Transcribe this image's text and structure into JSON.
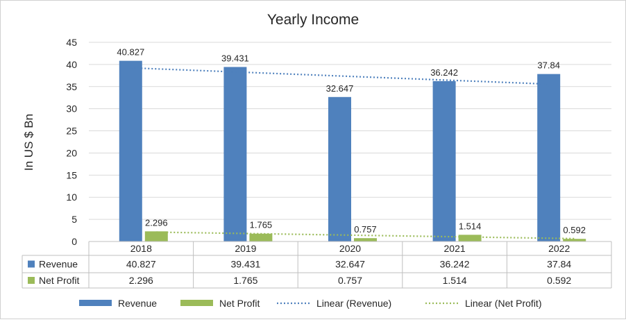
{
  "chart_data": {
    "type": "bar",
    "title": "Yearly Income",
    "ylabel": "In US $ Bn",
    "xlabel": "",
    "categories": [
      "2018",
      "2019",
      "2020",
      "2021",
      "2022"
    ],
    "ylim": [
      0,
      45
    ],
    "yticks": [
      "0",
      "5",
      "10",
      "15",
      "20",
      "25",
      "30",
      "35",
      "40",
      "45"
    ],
    "grid": true,
    "series": [
      {
        "name": "Revenue",
        "values": [
          40.827,
          39.431,
          32.647,
          36.242,
          37.84
        ],
        "labels": [
          "40.827",
          "39.431",
          "32.647",
          "36.242",
          "37.84"
        ],
        "color": "#4f81bd"
      },
      {
        "name": "Net Profit",
        "values": [
          2.296,
          1.765,
          0.757,
          1.514,
          0.592
        ],
        "labels": [
          "2.296",
          "1.765",
          "0.757",
          "1.514",
          "0.592"
        ],
        "color": "#9bbb59"
      }
    ],
    "trendlines": [
      {
        "name": "Linear (Revenue)",
        "series": "Revenue",
        "color": "#4f81bd",
        "style": "dotted"
      },
      {
        "name": "Linear (Net Profit)",
        "series": "Net Profit",
        "color": "#9bbb59",
        "style": "dotted"
      }
    ],
    "data_table": true,
    "legend_position": "bottom"
  }
}
